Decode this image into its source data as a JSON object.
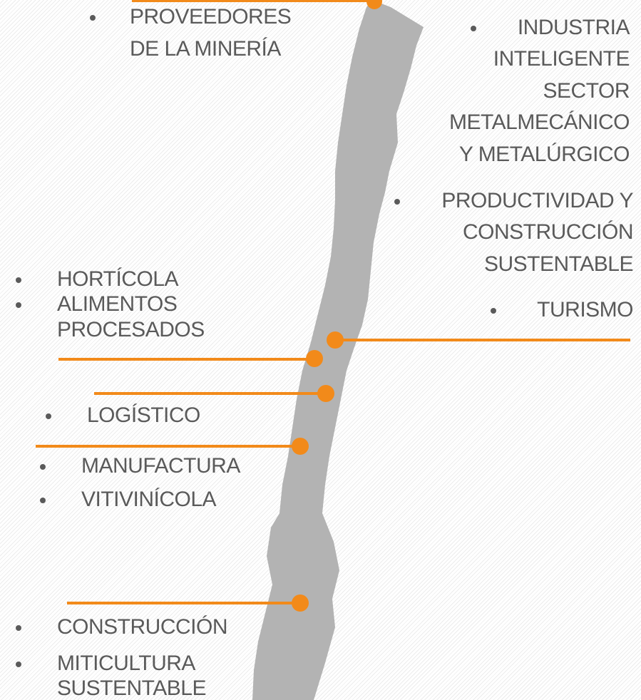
{
  "labels": [
    {
      "lines": [
        "PROVEEDORES",
        "DE LA MINERÍA"
      ]
    },
    {
      "lines": [
        "INDUSTRIA",
        "INTELIGENTE",
        "SECTOR",
        "METALMECÁNICO",
        "Y METALÚRGICO"
      ]
    },
    {
      "lines": [
        "PRODUCTIVIDAD Y",
        "CONSTRUCCIÓN",
        "SUSTENTABLE"
      ]
    },
    {
      "lines": [
        "TURISMO"
      ]
    },
    {
      "lines": [
        "HORTÍCOLA"
      ]
    },
    {
      "lines": [
        "ALIMENTOS",
        "PROCESADOS"
      ]
    },
    {
      "lines": [
        "LOGÍSTICO"
      ]
    },
    {
      "lines": [
        "MANUFACTURA"
      ]
    },
    {
      "lines": [
        "VITIVINÍCOLA"
      ]
    },
    {
      "lines": [
        "CONSTRUCCIÓN"
      ]
    },
    {
      "lines": [
        "MITICULTURA",
        "SUSTENTABLE"
      ]
    }
  ]
}
